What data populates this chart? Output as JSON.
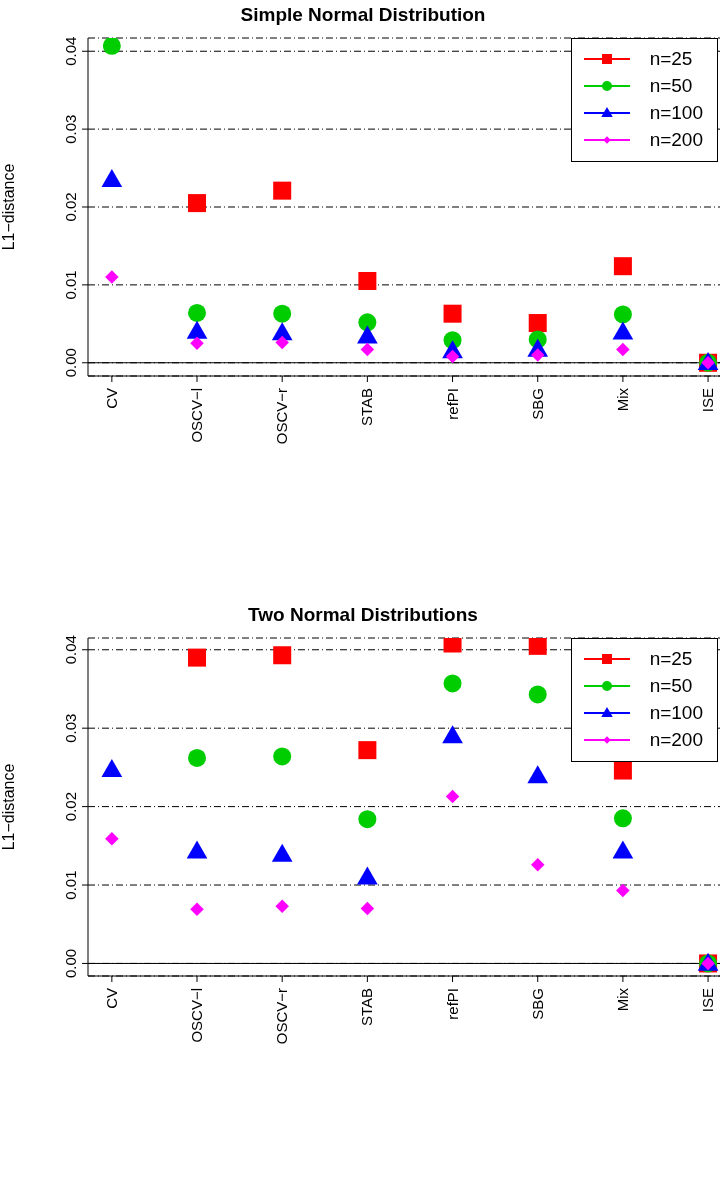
{
  "chart_data": [
    {
      "type": "scatter",
      "title": "Simple Normal Distribution",
      "ylabel": "L1−distance",
      "categories": [
        "CV",
        "OSCV−l",
        "OSCV−r",
        "STAB",
        "refPI",
        "SBG",
        "Mix",
        "ISE"
      ],
      "series": [
        {
          "name": "n=25",
          "color": "#ff0000",
          "marker": "square",
          "values": [
            null,
            0.0205,
            0.0221,
            0.0105,
            0.0063,
            0.0051,
            0.0124,
            0
          ]
        },
        {
          "name": "n=50",
          "color": "#00cd00",
          "marker": "circle",
          "values": [
            0.0407,
            0.0064,
            0.0063,
            0.0052,
            0.0029,
            0.003,
            0.0062,
            0
          ]
        },
        {
          "name": "n=100",
          "color": "#0000ff",
          "marker": "triangle",
          "values": [
            0.0235,
            0.004,
            0.0038,
            0.0034,
            0.0015,
            0.0017,
            0.0039,
            0
          ]
        },
        {
          "name": "n=200",
          "color": "#ff00ff",
          "marker": "diamond",
          "values": [
            0.011,
            0.0025,
            0.0026,
            0.0017,
            0.0008,
            0.001,
            0.0017,
            0
          ]
        }
      ],
      "ylim": [
        -0.0017,
        0.0417
      ],
      "yticks": [
        {
          "value": 0,
          "label": "0.00"
        },
        0.01,
        0.02,
        0.03,
        0.04
      ],
      "grid": "y",
      "legend": "top right",
      "ref_lines": [
        {
          "axis": "y",
          "value": 0,
          "line_style": "solid"
        }
      ]
    },
    {
      "type": "scatter",
      "title": "Two Normal Distributions",
      "ylabel": "L1−distance",
      "categories": [
        "CV",
        "OSCV−l",
        "OSCV−r",
        "STAB",
        "refPI",
        "SBG",
        "Mix",
        "ISE"
      ],
      "series": [
        {
          "name": "n=25",
          "color": "#ff0000",
          "marker": "square",
          "values": [
            null,
            0.039,
            0.0393,
            0.0272,
            0.0408,
            0.0405,
            0.0246,
            0
          ]
        },
        {
          "name": "n=50",
          "color": "#00cd00",
          "marker": "circle",
          "values": [
            null,
            0.0262,
            0.0264,
            0.0184,
            0.0357,
            0.0343,
            0.0185,
            0
          ]
        },
        {
          "name": "n=100",
          "color": "#0000ff",
          "marker": "triangle",
          "values": [
            0.0247,
            0.0143,
            0.0139,
            0.011,
            0.029,
            0.0239,
            0.0143,
            0
          ]
        },
        {
          "name": "n=200",
          "color": "#ff00ff",
          "marker": "diamond",
          "values": [
            0.0159,
            0.0069,
            0.0073,
            0.007,
            0.0213,
            0.0126,
            0.0093,
            0
          ]
        }
      ],
      "ylim": [
        -0.0016,
        0.0415
      ],
      "yticks": [
        {
          "value": 0,
          "label": "0.00"
        },
        0.01,
        0.02,
        0.03,
        0.04
      ],
      "grid": "y",
      "legend": "top right",
      "ref_lines": [
        {
          "axis": "y",
          "value": 0,
          "line_style": "solid"
        }
      ]
    }
  ]
}
